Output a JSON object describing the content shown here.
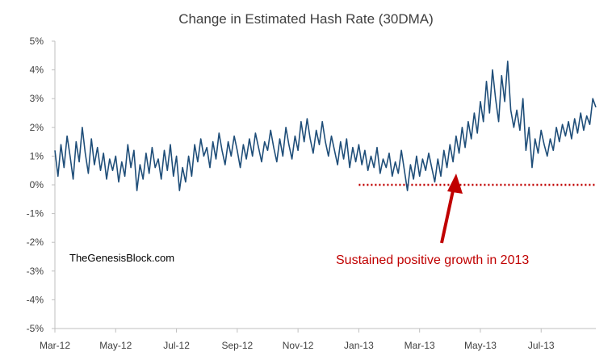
{
  "chart_data": {
    "type": "line",
    "title": "Change in Estimated Hash Rate (30DMA)",
    "xlabel": "",
    "ylabel": "",
    "y_ticks": [
      "5%",
      "4%",
      "3%",
      "2%",
      "1%",
      "0%",
      "-1%",
      "-2%",
      "-3%",
      "-4%",
      "-5%"
    ],
    "ylim": [
      -5,
      5
    ],
    "y_unit": "%",
    "x_ticks": [
      "Mar-12",
      "May-12",
      "Jul-12",
      "Sep-12",
      "Nov-12",
      "Jan-13",
      "Mar-13",
      "May-13",
      "Jul-13"
    ],
    "x_range_months": [
      0,
      17.8
    ],
    "grid": false,
    "series": [
      {
        "color": "#1f4e79",
        "points": [
          [
            0.0,
            1.2
          ],
          [
            0.1,
            0.3
          ],
          [
            0.2,
            1.4
          ],
          [
            0.3,
            0.6
          ],
          [
            0.4,
            1.7
          ],
          [
            0.5,
            1.0
          ],
          [
            0.6,
            0.2
          ],
          [
            0.7,
            1.5
          ],
          [
            0.8,
            0.8
          ],
          [
            0.9,
            2.0
          ],
          [
            1.0,
            1.1
          ],
          [
            1.1,
            0.4
          ],
          [
            1.2,
            1.6
          ],
          [
            1.3,
            0.7
          ],
          [
            1.4,
            1.3
          ],
          [
            1.5,
            0.5
          ],
          [
            1.6,
            1.1
          ],
          [
            1.7,
            0.2
          ],
          [
            1.8,
            0.9
          ],
          [
            1.9,
            0.5
          ],
          [
            2.0,
            1.0
          ],
          [
            2.1,
            0.1
          ],
          [
            2.2,
            0.8
          ],
          [
            2.3,
            0.3
          ],
          [
            2.4,
            1.4
          ],
          [
            2.5,
            0.6
          ],
          [
            2.6,
            1.2
          ],
          [
            2.7,
            -0.2
          ],
          [
            2.8,
            0.7
          ],
          [
            2.9,
            0.2
          ],
          [
            3.0,
            1.1
          ],
          [
            3.1,
            0.4
          ],
          [
            3.2,
            1.3
          ],
          [
            3.3,
            0.6
          ],
          [
            3.4,
            0.9
          ],
          [
            3.5,
            0.2
          ],
          [
            3.6,
            1.2
          ],
          [
            3.7,
            0.5
          ],
          [
            3.8,
            1.4
          ],
          [
            3.9,
            0.3
          ],
          [
            4.0,
            1.0
          ],
          [
            4.1,
            -0.2
          ],
          [
            4.2,
            0.6
          ],
          [
            4.3,
            0.1
          ],
          [
            4.4,
            1.0
          ],
          [
            4.5,
            0.3
          ],
          [
            4.6,
            1.4
          ],
          [
            4.7,
            0.8
          ],
          [
            4.8,
            1.6
          ],
          [
            4.9,
            1.0
          ],
          [
            5.0,
            1.3
          ],
          [
            5.1,
            0.6
          ],
          [
            5.2,
            1.5
          ],
          [
            5.3,
            0.9
          ],
          [
            5.4,
            1.8
          ],
          [
            5.5,
            1.2
          ],
          [
            5.6,
            0.7
          ],
          [
            5.7,
            1.5
          ],
          [
            5.8,
            1.0
          ],
          [
            5.9,
            1.7
          ],
          [
            6.0,
            1.2
          ],
          [
            6.1,
            0.6
          ],
          [
            6.2,
            1.4
          ],
          [
            6.3,
            0.9
          ],
          [
            6.4,
            1.6
          ],
          [
            6.5,
            1.0
          ],
          [
            6.6,
            1.8
          ],
          [
            6.7,
            1.3
          ],
          [
            6.8,
            0.8
          ],
          [
            6.9,
            1.5
          ],
          [
            7.0,
            1.2
          ],
          [
            7.1,
            1.9
          ],
          [
            7.2,
            1.3
          ],
          [
            7.3,
            0.8
          ],
          [
            7.4,
            1.6
          ],
          [
            7.5,
            1.0
          ],
          [
            7.6,
            2.0
          ],
          [
            7.7,
            1.4
          ],
          [
            7.8,
            0.9
          ],
          [
            7.9,
            1.7
          ],
          [
            8.0,
            1.2
          ],
          [
            8.1,
            2.2
          ],
          [
            8.2,
            1.5
          ],
          [
            8.3,
            2.3
          ],
          [
            8.4,
            1.6
          ],
          [
            8.5,
            1.1
          ],
          [
            8.6,
            1.9
          ],
          [
            8.7,
            1.4
          ],
          [
            8.8,
            2.2
          ],
          [
            8.9,
            1.5
          ],
          [
            9.0,
            1.0
          ],
          [
            9.1,
            1.7
          ],
          [
            9.2,
            1.2
          ],
          [
            9.3,
            0.7
          ],
          [
            9.4,
            1.5
          ],
          [
            9.5,
            0.9
          ],
          [
            9.6,
            1.6
          ],
          [
            9.7,
            0.6
          ],
          [
            9.8,
            1.3
          ],
          [
            9.9,
            0.8
          ],
          [
            10.0,
            1.4
          ],
          [
            10.1,
            0.7
          ],
          [
            10.2,
            1.2
          ],
          [
            10.3,
            0.5
          ],
          [
            10.4,
            1.0
          ],
          [
            10.5,
            0.6
          ],
          [
            10.6,
            1.3
          ],
          [
            10.7,
            0.4
          ],
          [
            10.8,
            0.9
          ],
          [
            10.9,
            0.6
          ],
          [
            11.0,
            1.1
          ],
          [
            11.1,
            0.3
          ],
          [
            11.2,
            0.8
          ],
          [
            11.3,
            0.4
          ],
          [
            11.4,
            1.2
          ],
          [
            11.5,
            0.5
          ],
          [
            11.6,
            -0.2
          ],
          [
            11.7,
            0.7
          ],
          [
            11.8,
            0.2
          ],
          [
            11.9,
            1.0
          ],
          [
            12.0,
            0.3
          ],
          [
            12.1,
            0.9
          ],
          [
            12.2,
            0.5
          ],
          [
            12.3,
            1.1
          ],
          [
            12.4,
            0.6
          ],
          [
            12.5,
            0.1
          ],
          [
            12.6,
            0.9
          ],
          [
            12.7,
            0.3
          ],
          [
            12.8,
            1.2
          ],
          [
            12.9,
            0.6
          ],
          [
            13.0,
            1.4
          ],
          [
            13.1,
            0.8
          ],
          [
            13.2,
            1.7
          ],
          [
            13.3,
            1.1
          ],
          [
            13.4,
            2.0
          ],
          [
            13.5,
            1.3
          ],
          [
            13.6,
            2.2
          ],
          [
            13.7,
            1.6
          ],
          [
            13.8,
            2.5
          ],
          [
            13.9,
            1.8
          ],
          [
            14.0,
            2.9
          ],
          [
            14.1,
            2.2
          ],
          [
            14.2,
            3.6
          ],
          [
            14.3,
            2.5
          ],
          [
            14.4,
            4.0
          ],
          [
            14.5,
            3.0
          ],
          [
            14.6,
            2.2
          ],
          [
            14.7,
            3.8
          ],
          [
            14.8,
            2.9
          ],
          [
            14.9,
            4.3
          ],
          [
            15.0,
            2.6
          ],
          [
            15.1,
            2.0
          ],
          [
            15.2,
            2.6
          ],
          [
            15.3,
            1.9
          ],
          [
            15.4,
            3.0
          ],
          [
            15.5,
            1.2
          ],
          [
            15.6,
            2.0
          ],
          [
            15.7,
            0.6
          ],
          [
            15.8,
            1.6
          ],
          [
            15.9,
            1.1
          ],
          [
            16.0,
            1.9
          ],
          [
            16.1,
            1.4
          ],
          [
            16.2,
            1.0
          ],
          [
            16.3,
            1.6
          ],
          [
            16.4,
            1.2
          ],
          [
            16.5,
            2.0
          ],
          [
            16.6,
            1.5
          ],
          [
            16.7,
            2.1
          ],
          [
            16.8,
            1.7
          ],
          [
            16.9,
            2.2
          ],
          [
            17.0,
            1.6
          ],
          [
            17.1,
            2.3
          ],
          [
            17.2,
            1.8
          ],
          [
            17.3,
            2.5
          ],
          [
            17.4,
            1.9
          ],
          [
            17.5,
            2.4
          ],
          [
            17.6,
            2.1
          ],
          [
            17.7,
            3.0
          ],
          [
            17.8,
            2.7
          ]
        ]
      }
    ],
    "reference_line": {
      "y": 0,
      "from_month": 10,
      "color": "#c00000"
    },
    "arrow_color": "#c00000",
    "annotations": [
      "Sustained positive growth in 2013"
    ],
    "watermark": "TheGenesisBlock.com"
  }
}
